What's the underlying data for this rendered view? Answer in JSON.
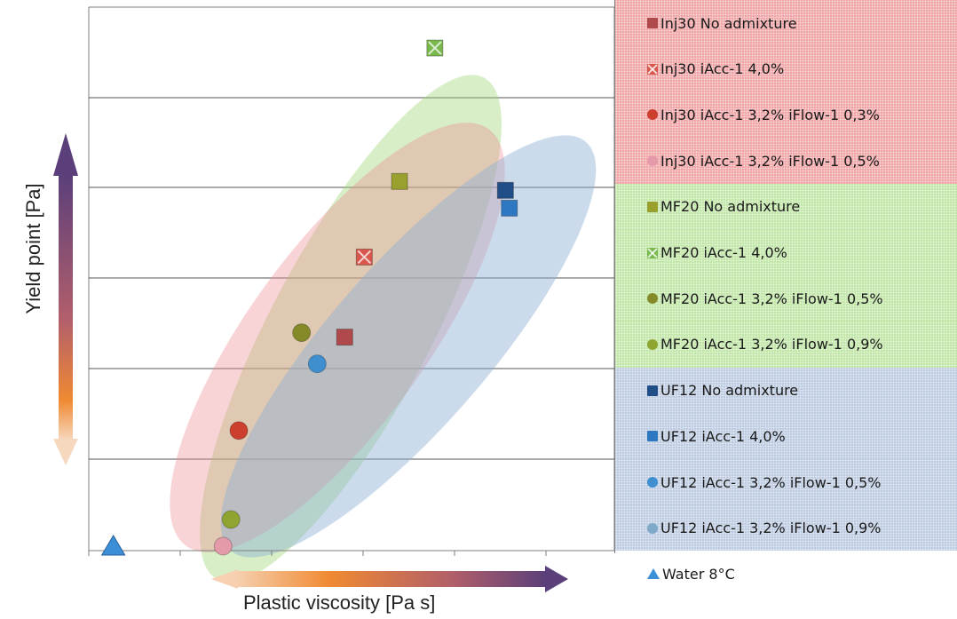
{
  "chart_data": {
    "type": "scatter",
    "xlabel": "Plastic viscosity [Pa s]",
    "ylabel": "Yield point [Pa]",
    "xlim": [
      0,
      6
    ],
    "ylim": [
      0,
      6
    ],
    "grid": "horizontal",
    "legend_placement": "right",
    "series": [
      {
        "name": "Inj30 No admixture",
        "group": "red",
        "marker": "square",
        "color": "#b0494b",
        "points": [
          [
            3.15,
            2.35
          ]
        ]
      },
      {
        "name": "Inj30 iAcc-1 4,0%",
        "group": "red",
        "marker": "xsquare",
        "color": "#d9564c",
        "points": [
          [
            3.4,
            3.25
          ]
        ]
      },
      {
        "name": "Inj30 iAcc-1 3,2% iFlow-1 0,3%",
        "group": "red",
        "marker": "circle",
        "color": "#cc3e2e",
        "points": [
          [
            1.8,
            1.3
          ]
        ]
      },
      {
        "name": "Inj30 iAcc-1 3,2% iFlow-1 0,5%",
        "group": "red",
        "marker": "circle",
        "color": "#e49aa8",
        "points": [
          [
            1.6,
            0.0
          ]
        ]
      },
      {
        "name": "MF20 No admixture",
        "group": "green",
        "marker": "square",
        "color": "#9aa02e",
        "points": [
          [
            3.85,
            4.1
          ]
        ]
      },
      {
        "name": "MF20 iAcc-1 4,0%",
        "group": "green",
        "marker": "xsquare",
        "color": "#79b84d",
        "points": [
          [
            4.3,
            5.6
          ]
        ]
      },
      {
        "name": "MF20 iAcc-1 3,2% iFlow-1 0,5%",
        "group": "green",
        "marker": "circle",
        "color": "#848a28",
        "points": [
          [
            2.6,
            2.4
          ]
        ]
      },
      {
        "name": "MF20 iAcc-1 3,2% iFlow-1 0,9%",
        "group": "green",
        "marker": "circle",
        "color": "#8ea532",
        "points": [
          [
            1.7,
            0.3
          ]
        ]
      },
      {
        "name": "UF12 No admixture",
        "group": "blue",
        "marker": "square",
        "color": "#1f4f86",
        "points": [
          [
            5.2,
            4.0
          ]
        ]
      },
      {
        "name": "UF12 iAcc-1 4,0%",
        "group": "blue",
        "marker": "square",
        "color": "#2e78c2",
        "points": [
          [
            5.25,
            3.8
          ]
        ]
      },
      {
        "name": "UF12 iAcc-1 3,2% iFlow-1 0,5%",
        "group": "blue",
        "marker": "circle",
        "color": "#3f8fd0",
        "points": [
          [
            2.8,
            2.05
          ]
        ]
      },
      {
        "name": "UF12 iAcc-1 3,2% iFlow-1 0,9%",
        "group": "blue",
        "marker": "circle",
        "color": "#7fa8c9",
        "points": []
      },
      {
        "name": "Water 8°C",
        "group": "white",
        "marker": "triangle",
        "color": "#3c8fd6",
        "points": [
          [
            0.2,
            0.0
          ]
        ]
      }
    ]
  },
  "colors": {
    "ellipse_green": "#9fd77a",
    "ellipse_red": "#ec8f92",
    "ellipse_orange": "#e8b86a",
    "ellipse_blue": "#8fb0d4",
    "arrow_purple": "#5a3f7a",
    "arrow_orange": "#f08a32"
  }
}
